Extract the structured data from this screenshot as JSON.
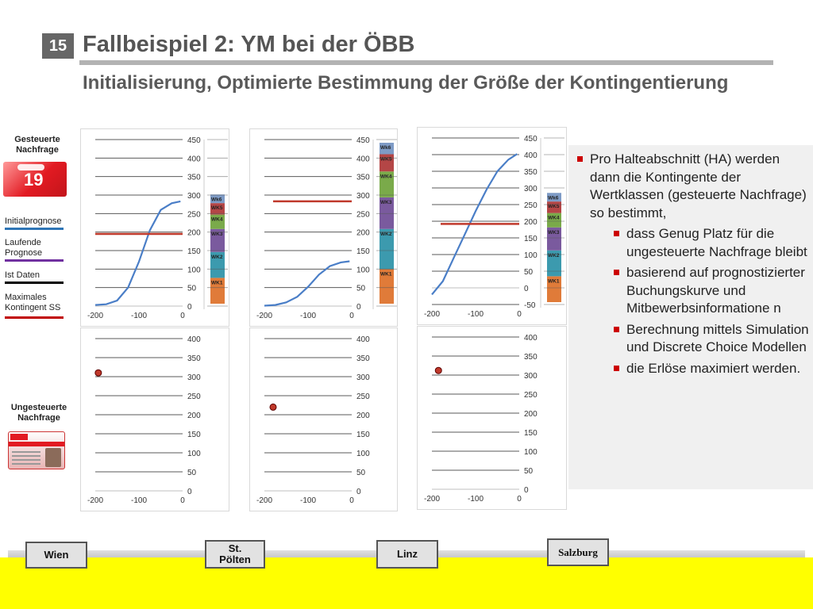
{
  "slide": {
    "number": "15",
    "title": "Fallbeispiel 2: YM bei der ÖBB",
    "subtitle": "Initialisierung, Optimierte Bestimmung der Größe der Kontingentierung"
  },
  "sidebar": {
    "gesteuerte": "Gesteuerte Nachfrage",
    "card_red_text": "19",
    "legend": [
      {
        "label": "Initialprognose",
        "color": "#2e75b6"
      },
      {
        "label": "Laufende Prognose",
        "color": "#7030a0"
      },
      {
        "label": "Ist Daten",
        "color": "#000000"
      },
      {
        "label": "Maximales Kontingent SS",
        "color": "#c00000"
      }
    ],
    "ungesteuerte": "Ungesteuerte Nachfrage"
  },
  "chart_data": [
    {
      "type": "line",
      "x_ticks": [
        "-200",
        "-100",
        "0"
      ],
      "y_ticks": [
        "0",
        "50",
        "100",
        "150",
        "200",
        "250",
        "300",
        "350",
        "400",
        "450"
      ],
      "xlim": [
        -200,
        0
      ],
      "ylim": [
        0,
        450
      ],
      "series": [
        {
          "values": [
            [
              -200,
              3
            ],
            [
              -175,
              5
            ],
            [
              -150,
              15
            ],
            [
              -125,
              50
            ],
            [
              -100,
              120
            ],
            [
              -75,
              205
            ],
            [
              -50,
              260
            ],
            [
              -25,
              278
            ],
            [
              -5,
              283
            ]
          ],
          "color": "#4a7ec7"
        },
        {
          "values": [
            [
              -200,
              195
            ],
            [
              0,
              195
            ]
          ],
          "color": "#c0392b"
        }
      ],
      "stack": [
        {
          "label": "WK1",
          "value": 45,
          "color": "#e07b39"
        },
        {
          "label": "WK2",
          "value": 45,
          "color": "#3c9aae"
        },
        {
          "label": "WK3",
          "value": 40,
          "color": "#7a5a9e"
        },
        {
          "label": "WK4",
          "value": 25,
          "color": "#7aaa4a"
        },
        {
          "label": "WK5",
          "value": 20,
          "color": "#b44646"
        },
        {
          "label": "Wk6",
          "value": 15,
          "color": "#7e9bc6"
        }
      ],
      "stack_max": 190
    },
    {
      "type": "line",
      "x_ticks": [
        "-200",
        "-100",
        "0"
      ],
      "y_ticks": [
        "0",
        "50",
        "100",
        "150",
        "200",
        "250",
        "300",
        "350",
        "400",
        "450"
      ],
      "xlim": [
        -200,
        0
      ],
      "ylim": [
        0,
        450
      ],
      "series": [
        {
          "values": [
            [
              -200,
              1
            ],
            [
              -175,
              3
            ],
            [
              -150,
              10
            ],
            [
              -125,
              25
            ],
            [
              -100,
              52
            ],
            [
              -75,
              85
            ],
            [
              -50,
              108
            ],
            [
              -25,
              118
            ],
            [
              -5,
              121
            ]
          ],
          "color": "#4a7ec7"
        },
        {
          "values": [
            [
              -180,
              283
            ],
            [
              0,
              283
            ]
          ],
          "color": "#c0392b"
        }
      ],
      "stack": [
        {
          "label": "WK1",
          "value": 60,
          "color": "#e07b39"
        },
        {
          "label": "WK2",
          "value": 70,
          "color": "#3c9aae"
        },
        {
          "label": "WK3",
          "value": 55,
          "color": "#7a5a9e"
        },
        {
          "label": "WK4",
          "value": 45,
          "color": "#7aaa4a"
        },
        {
          "label": "WK5",
          "value": 30,
          "color": "#b44646"
        },
        {
          "label": "Wk6",
          "value": 20,
          "color": "#7e9bc6"
        }
      ],
      "stack_max": 280
    },
    {
      "type": "line",
      "x_ticks": [
        "-200",
        "-100",
        "0"
      ],
      "y_ticks": [
        "-50",
        "0",
        "50",
        "100",
        "150",
        "200",
        "250",
        "300",
        "350",
        "400",
        "450"
      ],
      "xlim": [
        -200,
        0
      ],
      "ylim": [
        -50,
        450
      ],
      "series": [
        {
          "values": [
            [
              -200,
              -20
            ],
            [
              -175,
              20
            ],
            [
              -150,
              90
            ],
            [
              -125,
              160
            ],
            [
              -100,
              230
            ],
            [
              -75,
              295
            ],
            [
              -50,
              350
            ],
            [
              -25,
              385
            ],
            [
              -5,
              402
            ]
          ],
          "color": "#4a7ec7"
        },
        {
          "values": [
            [
              -180,
              192
            ],
            [
              0,
              192
            ]
          ],
          "color": "#c0392b"
        }
      ],
      "stack": [
        {
          "label": "WK1",
          "value": 45,
          "color": "#e07b39"
        },
        {
          "label": "WK2",
          "value": 45,
          "color": "#3c9aae"
        },
        {
          "label": "WK3",
          "value": 40,
          "color": "#7a5a9e"
        },
        {
          "label": "WK4",
          "value": 25,
          "color": "#7aaa4a"
        },
        {
          "label": "WK5",
          "value": 20,
          "color": "#b44646"
        },
        {
          "label": "Wk6",
          "value": 15,
          "color": "#7e9bc6"
        }
      ],
      "stack_max": 190
    },
    {
      "type": "scatter",
      "x_ticks": [
        "-200",
        "-100",
        "0"
      ],
      "y_ticks": [
        "0",
        "50",
        "100",
        "150",
        "200",
        "250",
        "300",
        "350",
        "400"
      ],
      "xlim": [
        -200,
        0
      ],
      "ylim": [
        0,
        400
      ],
      "points": [
        [
          -193,
          310
        ]
      ],
      "color": "#c0392b"
    },
    {
      "type": "scatter",
      "x_ticks": [
        "-200",
        "-100",
        "0"
      ],
      "y_ticks": [
        "0",
        "50",
        "100",
        "150",
        "200",
        "250",
        "300",
        "350",
        "400"
      ],
      "xlim": [
        -200,
        0
      ],
      "ylim": [
        0,
        400
      ],
      "points": [
        [
          -180,
          220
        ]
      ],
      "color": "#c0392b"
    },
    {
      "type": "scatter",
      "x_ticks": [
        "-200",
        "-100",
        "0"
      ],
      "y_ticks": [
        "0",
        "50",
        "100",
        "150",
        "200",
        "250",
        "300",
        "350",
        "400"
      ],
      "xlim": [
        -200,
        0
      ],
      "ylim": [
        0,
        400
      ],
      "points": [
        [
          -185,
          312
        ]
      ],
      "color": "#c0392b"
    }
  ],
  "bullets": [
    {
      "text": "Pro Halteabschnitt (HA) werden dann die Kontingente der Wertklassen (gesteuerte Nachfrage) so bestimmt,",
      "level": 1
    },
    {
      "text": "dass Genug Platz für die ungesteuerte Nachfrage bleibt",
      "level": 2
    },
    {
      "text": "basierend auf prognostizierter Buchungskurve und Mitbewerbsinformatione n",
      "level": 2
    },
    {
      "text": "Berechnung mittels Simulation und Discrete Choice Modellen",
      "level": 2
    },
    {
      "text": "die Erlöse maximiert werden.",
      "level": 2
    }
  ],
  "stations": [
    {
      "label": "Wien"
    },
    {
      "label": "St. Pölten"
    },
    {
      "label": "Linz"
    },
    {
      "label": "Salzburg"
    }
  ]
}
